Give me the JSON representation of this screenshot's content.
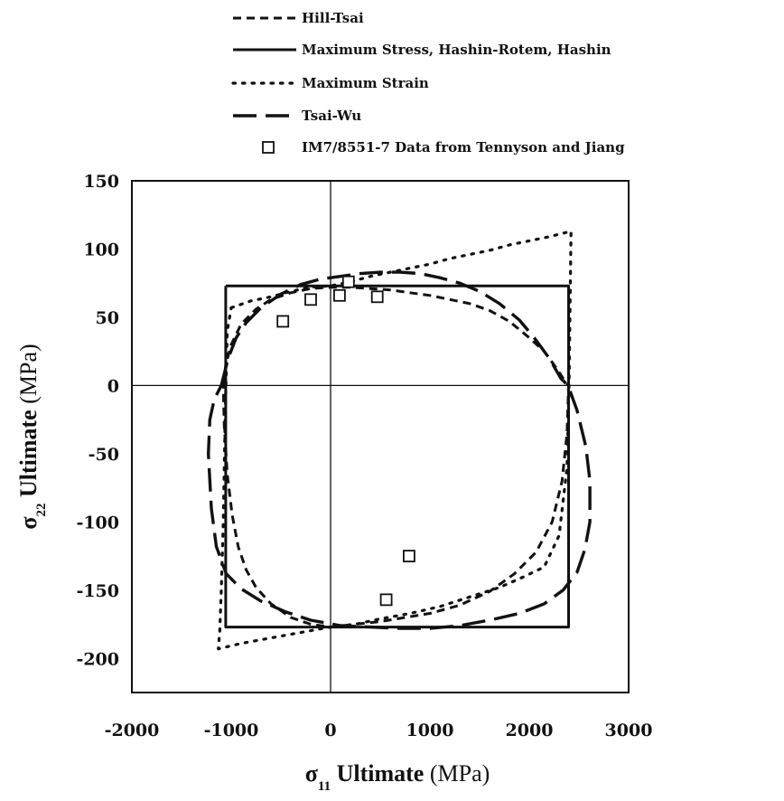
{
  "chart_data": {
    "type": "line",
    "xlabel": {
      "symbol": "σ",
      "subscript": "11",
      "text": "Ultimate",
      "unit": "(MPa)"
    },
    "ylabel": {
      "symbol": "σ",
      "subscript": "22",
      "text": "Ultimate",
      "unit": "(MPa)"
    },
    "xlim": [
      -2000,
      3000
    ],
    "ylim": [
      -225,
      150
    ],
    "xticks": [
      -2000,
      -1000,
      0,
      1000,
      2000,
      3000
    ],
    "yticks": [
      -200,
      -150,
      -100,
      -50,
      0,
      50,
      100,
      150
    ],
    "grid": false,
    "legend_position": "top",
    "series": [
      {
        "name": "Hill-Tsai",
        "style": "dashed",
        "x": [
          -1080,
          -1055,
          -1000,
          -900,
          -750,
          -600,
          -400,
          -200,
          0,
          200,
          400,
          600,
          800,
          1000,
          1200,
          1400,
          1600,
          1800,
          2000,
          2150,
          2280,
          2360,
          2395,
          2380,
          2330,
          2230,
          2070,
          1850,
          1600,
          1300,
          1000,
          750,
          500,
          250,
          0,
          -200,
          -400,
          -600,
          -750,
          -850,
          -930,
          -990,
          -1040,
          -1070,
          -1080
        ],
        "y": [
          0,
          15,
          30,
          45,
          56,
          63,
          68,
          71,
          72,
          72,
          71,
          70,
          68,
          66,
          63,
          60,
          55,
          47,
          35,
          25,
          12,
          3,
          0,
          -35,
          -70,
          -100,
          -122,
          -138,
          -151,
          -161,
          -167,
          -170,
          -173,
          -175,
          -177,
          -175,
          -170,
          -160,
          -148,
          -135,
          -118,
          -95,
          -65,
          -30,
          0
        ],
        "color": "#111111"
      },
      {
        "name": "Maximum Stress, Hashin-Rotem, Hashin",
        "style": "solid",
        "x": [
          -1055,
          2395,
          2395,
          -1055,
          -1055
        ],
        "y": [
          73,
          73,
          -177,
          -177,
          73
        ],
        "color": "#111111"
      },
      {
        "name": "Maximum Strain",
        "style": "dotted",
        "x": [
          -1000,
          -800,
          -600,
          -400,
          -200,
          0,
          200,
          400,
          600,
          800,
          1000,
          1200,
          1400,
          1600,
          1800,
          2000,
          2200,
          2420,
          2400,
          2380,
          2300,
          2150,
          1950,
          1700,
          1400,
          1100,
          800,
          500,
          250,
          0,
          -300,
          -600,
          -900,
          -1130,
          -1115,
          -1100,
          -1080,
          -1060,
          -1040,
          -1000
        ],
        "y": [
          57,
          62,
          65,
          69,
          72,
          73,
          76,
          80,
          83,
          86,
          89,
          93,
          96,
          99,
          103,
          106,
          109,
          113,
          0,
          -60,
          -110,
          -133,
          -140,
          -148,
          -155,
          -162,
          -167,
          -171,
          -175,
          -177,
          -181,
          -185,
          -189,
          -193,
          -180,
          -150,
          -100,
          -20,
          40,
          57
        ],
        "color": "#111111"
      },
      {
        "name": "Tsai-Wu",
        "style": "long-dashed",
        "x": [
          -1100,
          -1030,
          -950,
          -850,
          -700,
          -500,
          -300,
          -100,
          100,
          300,
          500,
          700,
          900,
          1100,
          1300,
          1500,
          1700,
          1900,
          2050,
          2200,
          2320,
          2390,
          2480,
          2570,
          2610,
          2610,
          2560,
          2480,
          2340,
          2150,
          1900,
          1600,
          1300,
          1000,
          700,
          400,
          100,
          -200,
          -450,
          -700,
          -900,
          -1050,
          -1150,
          -1200,
          -1230,
          -1215,
          -1170,
          -1100
        ],
        "y": [
          0,
          20,
          35,
          46,
          57,
          67,
          74,
          78,
          80,
          82,
          83,
          83,
          82,
          79,
          75,
          69,
          60,
          48,
          35,
          20,
          5,
          0,
          -18,
          -45,
          -70,
          -100,
          -120,
          -137,
          -150,
          -160,
          -167,
          -172,
          -176,
          -178,
          -178,
          -177,
          -176,
          -172,
          -166,
          -158,
          -149,
          -138,
          -118,
          -90,
          -50,
          -25,
          -10,
          0
        ],
        "color": "#111111"
      }
    ],
    "points": {
      "name": "IM7/8551-7 Data from Tennyson and Jiang",
      "marker": "open-square",
      "x": [
        -480,
        -200,
        90,
        180,
        470,
        560,
        790
      ],
      "y": [
        47,
        63,
        66,
        76,
        65,
        -157,
        -125
      ]
    },
    "legend": [
      {
        "label": "Hill-Tsai",
        "style": "dashed"
      },
      {
        "label": "Maximum Stress, Hashin-Rotem, Hashin",
        "style": "solid"
      },
      {
        "label": "Maximum Strain",
        "style": "dotted"
      },
      {
        "label": "Tsai-Wu",
        "style": "long-dashed"
      },
      {
        "label": "IM7/8551-7 Data from Tennyson and Jiang",
        "style": "marker"
      }
    ]
  }
}
